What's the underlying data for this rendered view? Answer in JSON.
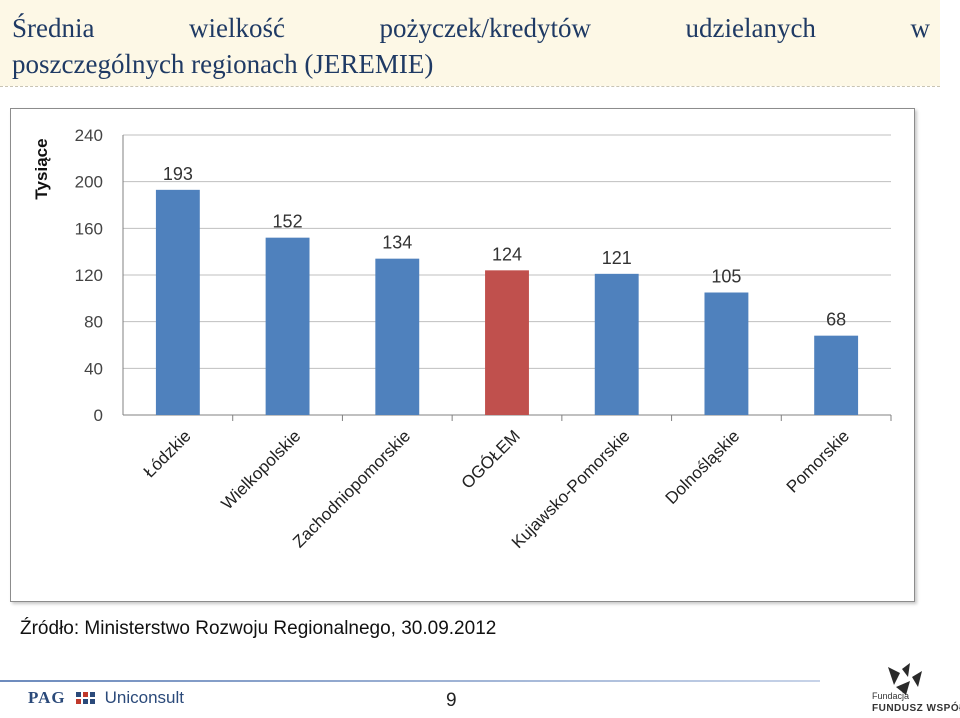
{
  "slide": {
    "title_line1_words": [
      "Średnia",
      "wielkość",
      "pożyczek/kredytów",
      "udzielanych",
      "w"
    ],
    "title_line2": "poszczególnych regionach (JEREMIE)",
    "source": "Źródło: Ministerstwo Rozwoju Regionalnego, 30.09.2012",
    "page_number": "9",
    "footer_left_brand": "PAG",
    "footer_left_company": "Uniconsult",
    "footer_right_line1": "Fundacja",
    "footer_right_line2": "FUNDUSZ WSPÓŁPRACY"
  },
  "chart_data": {
    "type": "bar",
    "title": "",
    "xlabel": "",
    "ylabel": "Tysiące",
    "categories": [
      "Łódzkie",
      "Wielkopolskie",
      "Zachodniopomorskie",
      "OGÓŁEM",
      "Kujawsko-Pomorskie",
      "Dolnośląskie",
      "Pomorskie"
    ],
    "values": [
      193,
      152,
      134,
      124,
      121,
      105,
      68
    ],
    "data_labels": [
      "193",
      "152",
      "134",
      "124",
      "121",
      "105",
      "68"
    ],
    "highlight_index": 3,
    "ylim": [
      0,
      240
    ],
    "yticks": [
      0,
      40,
      80,
      120,
      160,
      200,
      240
    ],
    "grid": true,
    "legend": "none",
    "colors": {
      "bar": "#4f81bd",
      "highlight": "#c0504d",
      "grid": "#bfbfbf",
      "axis": "#808080"
    }
  }
}
